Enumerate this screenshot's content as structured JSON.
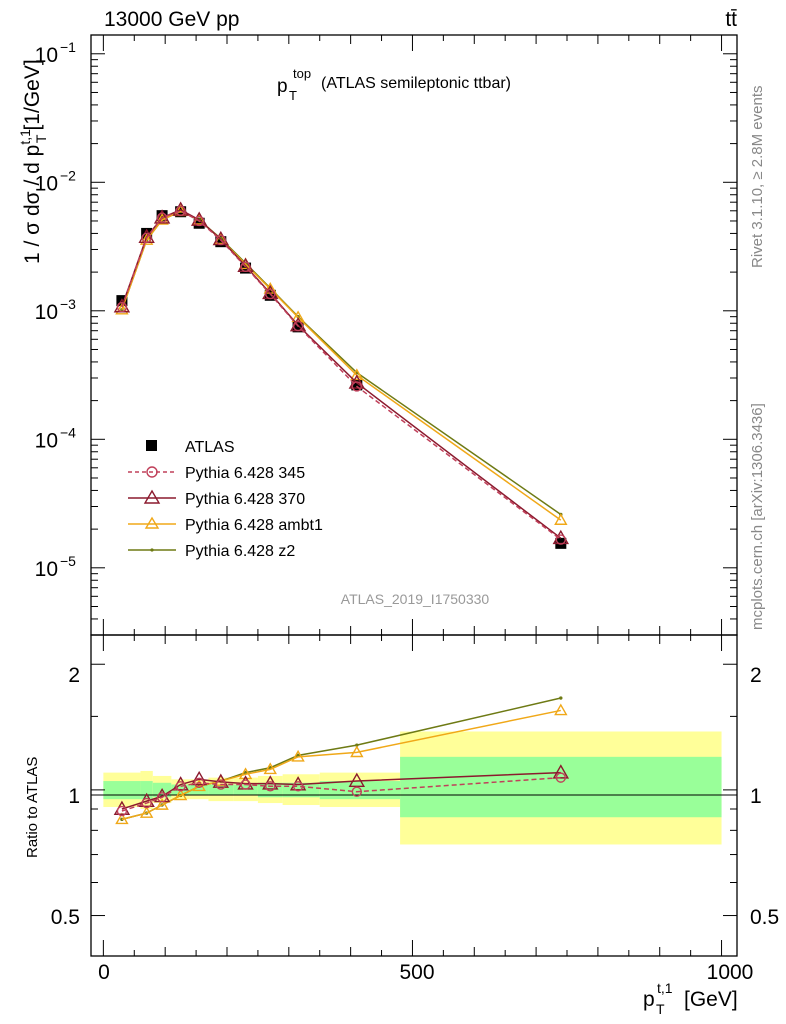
{
  "header": {
    "left": "13000 GeV pp",
    "right": "tt̄"
  },
  "side_labels": {
    "rivet": "Rivet 3.1.10, ≥ 2.8M events",
    "mcplots": "mcplots.cern.ch [arXiv:1306.3436]"
  },
  "main_plot": {
    "title_main": "p",
    "title_sup": "top",
    "title_sub": "T",
    "title_rest": "(ATLAS semileptonic ttbar)",
    "ylabel_pre": "1 / σ dσ / d p",
    "ylabel_sup": "t,1",
    "ylabel_sub": "T",
    "ylabel_unit": "[1/GeV]",
    "watermark": "ATLAS_2019_I1750330",
    "ytick_labels": [
      {
        "base": "10",
        "exp": "−1"
      },
      {
        "base": "10",
        "exp": "−2"
      },
      {
        "base": "10",
        "exp": "−3"
      },
      {
        "base": "10",
        "exp": "−4"
      },
      {
        "base": "10",
        "exp": "−5"
      }
    ]
  },
  "ratio_plot": {
    "ylabel": "Ratio to ATLAS",
    "ytick_labels": [
      "2",
      "1",
      "0.5"
    ]
  },
  "xaxis": {
    "tick_labels": [
      "0",
      "500",
      "1000"
    ],
    "label_main": "p",
    "label_sup": "t,1",
    "label_sub": "T",
    "label_unit": "[GeV]"
  },
  "legend": [
    "ATLAS",
    "Pythia 6.428 345",
    "Pythia 6.428 370",
    "Pythia 6.428 ambt1",
    "Pythia 6.428 z2"
  ],
  "colors": {
    "data": "#000000",
    "p345": "#c0405a",
    "p370": "#8b1a2e",
    "ambt1": "#f0a818",
    "z2": "#6e7a14",
    "band_inner": "#99ff99",
    "band_outer": "#ffff99"
  },
  "chart_data": {
    "type": "line",
    "x_range": [
      -20,
      1025
    ],
    "main_y_scale": "log",
    "main_y_range": [
      3e-06,
      0.14
    ],
    "ratio_y_scale": "log",
    "ratio_y_range": [
      0.4,
      2.35
    ],
    "bins": [
      {
        "lo": 0,
        "hi": 60
      },
      {
        "lo": 60,
        "hi": 80
      },
      {
        "lo": 80,
        "hi": 110
      },
      {
        "lo": 110,
        "hi": 140
      },
      {
        "lo": 140,
        "hi": 170
      },
      {
        "lo": 170,
        "hi": 210
      },
      {
        "lo": 210,
        "hi": 250
      },
      {
        "lo": 250,
        "hi": 290
      },
      {
        "lo": 290,
        "hi": 350
      },
      {
        "lo": 350,
        "hi": 480
      },
      {
        "lo": 480,
        "hi": 1000
      }
    ],
    "x": [
      30,
      70,
      95,
      125,
      155,
      190,
      230,
      270,
      315,
      410,
      740
    ],
    "data_values": [
      0.0012,
      0.004,
      0.0055,
      0.0059,
      0.0048,
      0.00345,
      0.00215,
      0.00132,
      0.00075,
      0.000265,
      1.55e-05
    ],
    "band_inner": [
      [
        0.95,
        1.05
      ],
      [
        0.95,
        1.05
      ],
      [
        0.96,
        1.04
      ],
      [
        0.97,
        1.03
      ],
      [
        0.97,
        1.03
      ],
      [
        0.97,
        1.03
      ],
      [
        0.97,
        1.03
      ],
      [
        0.96,
        1.04
      ],
      [
        0.96,
        1.04
      ],
      [
        0.95,
        1.05
      ],
      [
        0.86,
        1.2
      ]
    ],
    "band_outer": [
      [
        0.91,
        1.1
      ],
      [
        0.9,
        1.11
      ],
      [
        0.93,
        1.08
      ],
      [
        0.95,
        1.06
      ],
      [
        0.95,
        1.06
      ],
      [
        0.94,
        1.07
      ],
      [
        0.94,
        1.07
      ],
      [
        0.93,
        1.08
      ],
      [
        0.92,
        1.09
      ],
      [
        0.91,
        1.1
      ],
      [
        0.74,
        1.38
      ]
    ],
    "series": [
      {
        "name": "Pythia 6.428 345",
        "values": [
          0.00107,
          0.0037,
          0.0053,
          0.006,
          0.005,
          0.00355,
          0.0022,
          0.00135,
          0.00076,
          0.000258,
          1.66e-05
        ],
        "ratio": [
          0.89,
          0.93,
          0.96,
          1.02,
          1.04,
          1.03,
          1.03,
          1.02,
          1.02,
          0.99,
          1.07
        ]
      },
      {
        "name": "Pythia 6.428 370",
        "values": [
          0.00108,
          0.00375,
          0.0053,
          0.0061,
          0.0051,
          0.0036,
          0.00223,
          0.00137,
          0.00077,
          0.000275,
          1.7e-05
        ],
        "ratio": [
          0.9,
          0.94,
          0.965,
          1.03,
          1.06,
          1.045,
          1.035,
          1.035,
          1.03,
          1.05,
          1.1
        ]
      },
      {
        "name": "Pythia 6.428 ambt1",
        "values": [
          0.00102,
          0.00355,
          0.0051,
          0.00595,
          0.0051,
          0.0036,
          0.0023,
          0.00148,
          0.00089,
          0.000315,
          2.35e-05
        ],
        "ratio": [
          0.85,
          0.88,
          0.92,
          0.97,
          1.02,
          1.05,
          1.09,
          1.12,
          1.2,
          1.23,
          1.55
        ]
      },
      {
        "name": "Pythia 6.428 z2",
        "values": [
          0.00102,
          0.00355,
          0.0051,
          0.00595,
          0.0051,
          0.00365,
          0.00235,
          0.0015,
          0.0009,
          0.00033,
          2.6e-05
        ],
        "ratio": [
          0.85,
          0.88,
          0.92,
          0.97,
          1.02,
          1.05,
          1.1,
          1.13,
          1.21,
          1.28,
          1.66
        ]
      }
    ]
  }
}
